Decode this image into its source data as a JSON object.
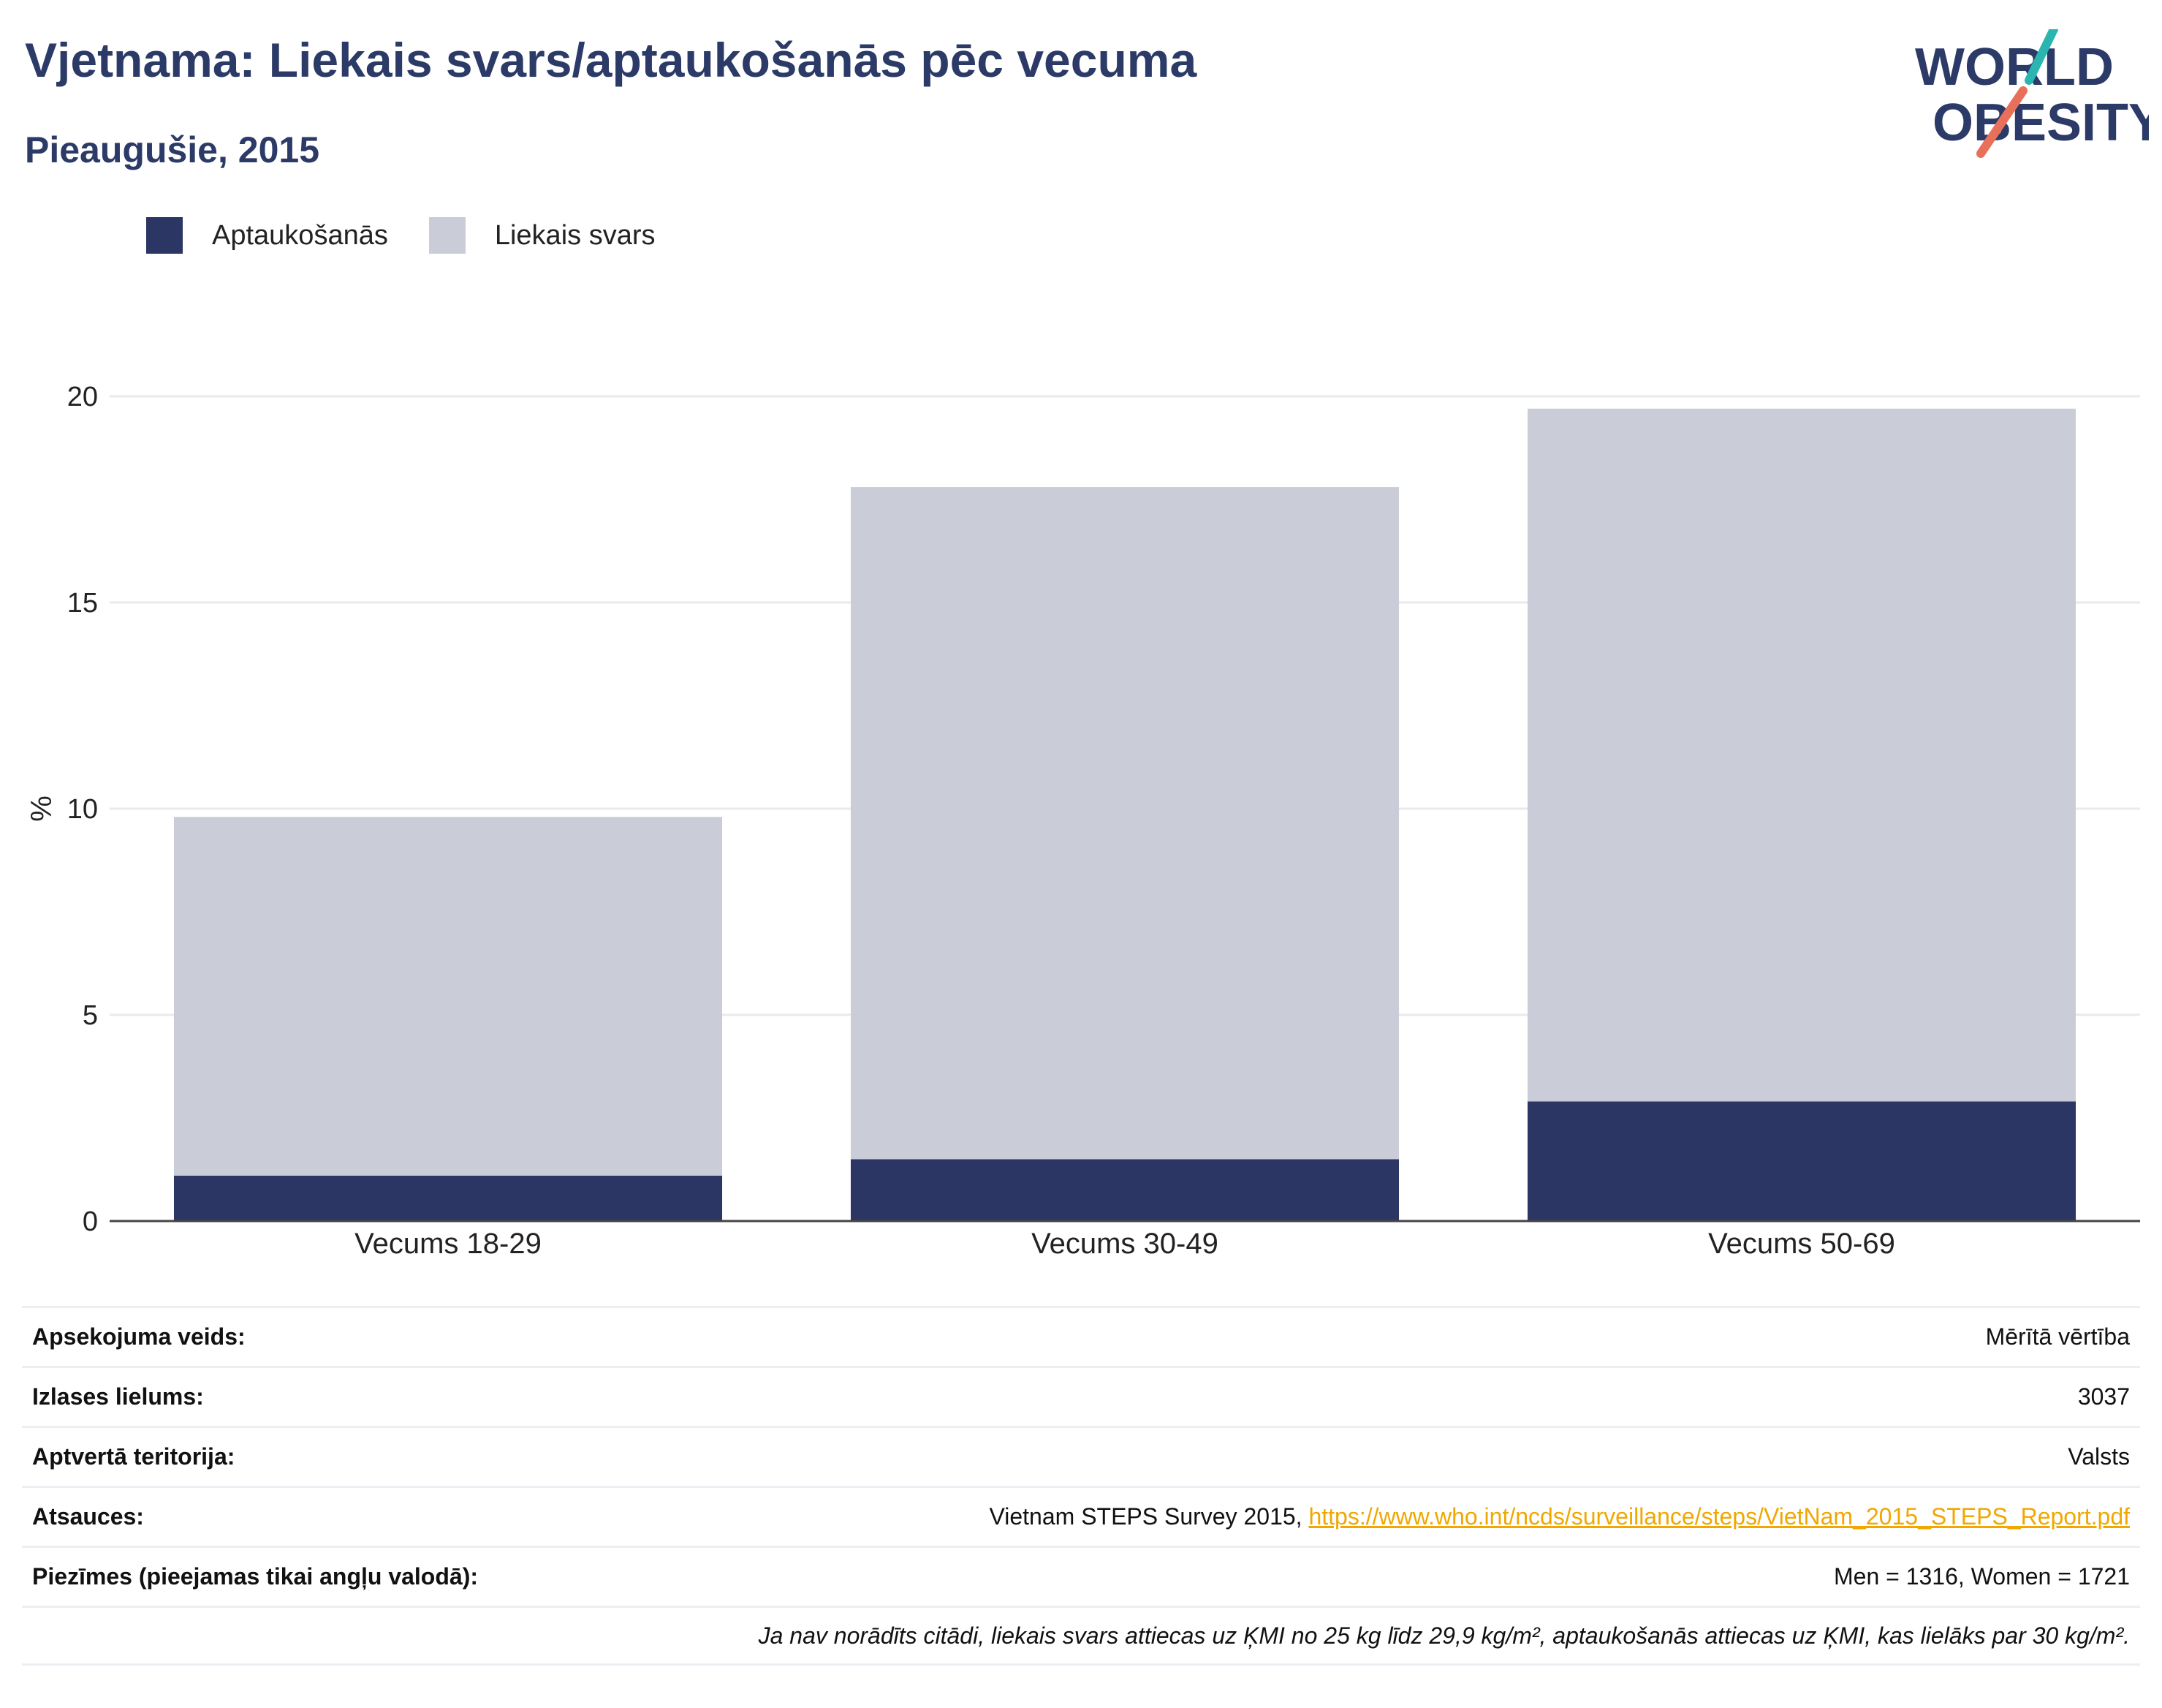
{
  "header": {
    "title": "Vjetnama: Liekais svars/aptaukošanās pēc vecuma",
    "subtitle": "Pieaugušie, 2015"
  },
  "logo": {
    "line1": "WORLD",
    "line2": "OBESITY",
    "accent_teal": "#2bb5b0",
    "accent_coral": "#e8705a",
    "text_color": "#2b3a67"
  },
  "legend": [
    {
      "label": "Aptaukošanās",
      "color": "#2b3664"
    },
    {
      "label": "Liekais svars",
      "color": "#caccd8"
    }
  ],
  "chart_data": {
    "type": "bar",
    "stacked": true,
    "categories": [
      "Vecums 18-29",
      "Vecums 30-49",
      "Vecums 50-69"
    ],
    "series": [
      {
        "name": "Aptaukošanās",
        "values": [
          1.1,
          1.5,
          2.9
        ],
        "color": "#2b3664"
      },
      {
        "name": "Liekais svars",
        "values": [
          8.7,
          16.3,
          16.8
        ],
        "color": "#caccd8"
      }
    ],
    "ylabel": "%",
    "ylim": [
      0,
      20
    ],
    "yticks": [
      0,
      5,
      10,
      15,
      20
    ],
    "grid": true,
    "legend_position": "top-left"
  },
  "meta": {
    "rows": [
      {
        "label": "Apsekojuma veids:",
        "value": "Mērītā vērtība"
      },
      {
        "label": "Izlases lielums:",
        "value": "3037"
      },
      {
        "label": "Aptvertā teritorija:",
        "value": "Valsts"
      },
      {
        "label": "Atsauces:",
        "value": "Vietnam STEPS Survey 2015, ",
        "link": "https://www.who.int/ncds/surveillance/steps/VietNam_2015_STEPS_Report.pdf"
      },
      {
        "label": "Piezīmes (pieejamas tikai angļu valodā):",
        "value": "Men = 1316, Women = 1721"
      }
    ],
    "note": "Ja nav norādīts citādi, liekais svars attiecas uz ĶMI no 25 kg līdz 29,9 kg/m², aptaukošanās attiecas uz ĶMI, kas lielāks par 30 kg/m²."
  }
}
